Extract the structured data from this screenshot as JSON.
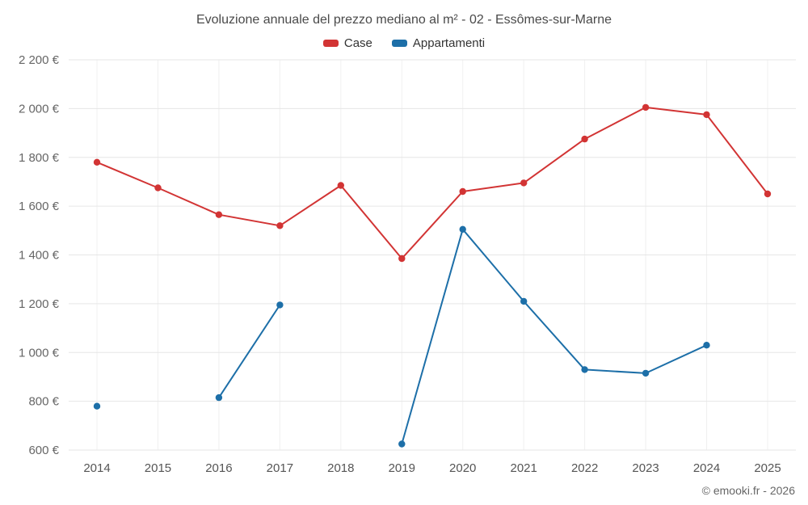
{
  "chart_data": {
    "type": "line",
    "title": "Evoluzione annuale del prezzo mediano al m² - 02 - Essômes-sur-Marne",
    "categories": [
      "2014",
      "2015",
      "2016",
      "2017",
      "2018",
      "2019",
      "2020",
      "2021",
      "2022",
      "2023",
      "2024",
      "2025"
    ],
    "series": [
      {
        "name": "Case",
        "color": "#d23434",
        "values": [
          1780,
          1675,
          1565,
          1520,
          1685,
          1385,
          1660,
          1695,
          1875,
          2005,
          1975,
          1650
        ]
      },
      {
        "name": "Appartamenti",
        "color": "#1d6fa8",
        "values": [
          780,
          null,
          815,
          1195,
          null,
          625,
          1505,
          1210,
          930,
          915,
          1030,
          null
        ]
      }
    ],
    "ylim": [
      600,
      2200
    ],
    "ytick_step": 200,
    "ytick_labels": [
      "600 €",
      "800 €",
      "1 000 €",
      "1 200 €",
      "1 400 €",
      "1 600 €",
      "1 800 €",
      "2 000 €",
      "2 200 €"
    ],
    "xlabel": "",
    "ylabel": "",
    "grid": true,
    "legend_position": "top"
  },
  "footer": {
    "credit": "© emooki.fr - 2026"
  }
}
